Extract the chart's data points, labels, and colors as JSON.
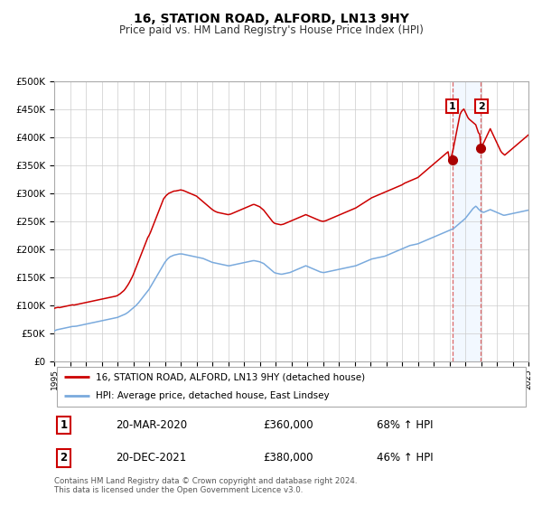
{
  "title": "16, STATION ROAD, ALFORD, LN13 9HY",
  "subtitle": "Price paid vs. HM Land Registry's House Price Index (HPI)",
  "legend_label1": "16, STATION ROAD, ALFORD, LN13 9HY (detached house)",
  "legend_label2": "HPI: Average price, detached house, East Lindsey",
  "annotation1_date": "20-MAR-2020",
  "annotation1_price": "£360,000",
  "annotation1_hpi": "68% ↑ HPI",
  "annotation1_year": 2020.22,
  "annotation1_value": 360000,
  "annotation2_date": "20-DEC-2021",
  "annotation2_price": "£380,000",
  "annotation2_hpi": "46% ↑ HPI",
  "annotation2_year": 2021.97,
  "annotation2_value": 380000,
  "line1_color": "#cc0000",
  "line2_color": "#7aaadd",
  "dot_color": "#aa0000",
  "vline_color": "#dd6666",
  "shade_color": "#ddeeff",
  "grid_color": "#cccccc",
  "footer": "Contains HM Land Registry data © Crown copyright and database right 2024.\nThis data is licensed under the Open Government Licence v3.0.",
  "ylim": [
    0,
    500000
  ],
  "xlim_start": 1995,
  "xlim_end": 2025,
  "hpi_data": [
    55000,
    56000,
    57000,
    57500,
    58000,
    58500,
    59000,
    59500,
    60000,
    60500,
    61000,
    61500,
    62000,
    62500,
    63000,
    63000,
    63200,
    63500,
    64000,
    64500,
    65000,
    65500,
    66000,
    66500,
    67000,
    67500,
    68000,
    68500,
    69000,
    69500,
    70000,
    70500,
    71000,
    71500,
    72000,
    72500,
    73000,
    73500,
    74000,
    74500,
    75000,
    75500,
    76000,
    76500,
    77000,
    77500,
    78000,
    78500,
    79000,
    80000,
    81000,
    82000,
    83000,
    84000,
    85000,
    86500,
    88000,
    90000,
    92000,
    94000,
    96000,
    98000,
    100000,
    102500,
    105000,
    108000,
    111000,
    114000,
    117000,
    120000,
    123000,
    126000,
    129000,
    133000,
    137000,
    141000,
    145000,
    149000,
    153000,
    157000,
    161000,
    165000,
    169000,
    173000,
    177000,
    180000,
    183000,
    185000,
    187000,
    188000,
    189000,
    190000,
    190500,
    191000,
    191500,
    192000,
    192000,
    192000,
    191500,
    191000,
    190500,
    190000,
    189500,
    189000,
    188500,
    188000,
    187500,
    187000,
    186500,
    186000,
    185500,
    185000,
    184500,
    184000,
    183000,
    182000,
    181000,
    180000,
    179000,
    178000,
    177000,
    176500,
    176000,
    175500,
    175000,
    174500,
    174000,
    173500,
    173000,
    172500,
    172000,
    171500,
    171000,
    171000,
    171500,
    172000,
    172500,
    173000,
    173500,
    174000,
    174500,
    175000,
    175500,
    176000,
    176500,
    177000,
    177500,
    178000,
    178500,
    179000,
    179500,
    180000,
    180000,
    179500,
    179000,
    178500,
    178000,
    177000,
    176000,
    175000,
    173000,
    171000,
    169000,
    167000,
    165000,
    163000,
    161000,
    159000,
    158000,
    157500,
    157000,
    156500,
    156000,
    156000,
    156500,
    157000,
    157500,
    158000,
    158500,
    159000,
    160000,
    161000,
    162000,
    163000,
    164000,
    165000,
    166000,
    167000,
    168000,
    169000,
    170000,
    171000,
    170000,
    169000,
    168000,
    167000,
    166000,
    165000,
    164000,
    163000,
    162000,
    161000,
    160000,
    159500,
    159000,
    159000,
    159500,
    160000,
    160500,
    161000,
    161500,
    162000,
    162500,
    163000,
    163500,
    164000,
    164500,
    165000,
    165500,
    166000,
    166500,
    167000,
    167500,
    168000,
    168500,
    169000,
    169500,
    170000,
    170500,
    171000,
    172000,
    173000,
    174000,
    175000,
    176000,
    177000,
    178000,
    179000,
    180000,
    181000,
    182000,
    183000,
    183500,
    184000,
    184500,
    185000,
    185500,
    186000,
    186500,
    187000,
    187500,
    188000,
    189000,
    190000,
    191000,
    192000,
    193000,
    194000,
    195000,
    196000,
    197000,
    198000,
    199000,
    200000,
    201000,
    202000,
    203000,
    204000,
    205000,
    206000,
    207000,
    207500,
    208000,
    208500,
    209000,
    209500,
    210000,
    211000,
    212000,
    213000,
    214000,
    215000,
    216000,
    217000,
    218000,
    219000,
    220000,
    221000,
    222000,
    223000,
    224000,
    225000,
    226000,
    227000,
    228000,
    229000,
    230000,
    231000,
    232000,
    233000,
    234000,
    235000,
    236000,
    237000,
    239000,
    241000,
    243000,
    245000,
    247000,
    249000,
    251000,
    253000,
    255000,
    258000,
    261000,
    264000,
    267000,
    270000,
    273000,
    275000,
    277000,
    275000,
    272000,
    270000,
    268000,
    267000,
    266000,
    267000,
    268000,
    269000,
    270000,
    271000,
    270000,
    269000,
    268000,
    267000,
    266000,
    265000,
    264000,
    263000,
    262000,
    261000,
    261000,
    261500,
    262000,
    262500,
    263000,
    263500,
    264000,
    264500,
    265000,
    265500,
    266000,
    266500,
    267000,
    267500,
    268000,
    268500,
    269000,
    269500,
    270000
  ],
  "red_data": [
    95000,
    96000,
    96500,
    97000,
    96500,
    97000,
    97500,
    98000,
    98500,
    99000,
    99500,
    100000,
    100500,
    101000,
    101500,
    101000,
    101500,
    102000,
    102500,
    103000,
    103500,
    104000,
    104500,
    105000,
    105500,
    106000,
    106500,
    107000,
    107500,
    108000,
    108500,
    109000,
    109500,
    110000,
    110500,
    111000,
    111500,
    112000,
    112500,
    113000,
    113500,
    114000,
    114500,
    115000,
    115500,
    116000,
    116500,
    117000,
    118000,
    119500,
    121000,
    123000,
    125000,
    127000,
    130000,
    133500,
    137000,
    141000,
    145500,
    150000,
    155000,
    161000,
    167000,
    173000,
    179000,
    185000,
    191000,
    197000,
    203000,
    209000,
    215000,
    221000,
    225000,
    230000,
    236000,
    242000,
    248000,
    254000,
    260000,
    266000,
    272000,
    278000,
    284000,
    290000,
    293000,
    296000,
    298000,
    300000,
    301000,
    302000,
    303000,
    304000,
    304000,
    304500,
    305000,
    305500,
    306000,
    305500,
    305000,
    304000,
    303000,
    302000,
    301000,
    300000,
    299000,
    298000,
    297000,
    296000,
    295000,
    293000,
    291000,
    289000,
    287000,
    285000,
    283000,
    281000,
    279000,
    277000,
    275000,
    273000,
    271000,
    269500,
    268000,
    267000,
    266000,
    265500,
    265000,
    264500,
    264000,
    263500,
    263000,
    262500,
    262000,
    262500,
    263000,
    264000,
    265000,
    266000,
    267000,
    268000,
    269000,
    270000,
    271000,
    272000,
    273000,
    274000,
    275000,
    276000,
    277000,
    278000,
    279000,
    280000,
    280000,
    279000,
    278000,
    277000,
    276000,
    274000,
    272000,
    270000,
    267000,
    264000,
    261000,
    258000,
    255000,
    252000,
    249000,
    247000,
    246000,
    245500,
    245000,
    244500,
    244000,
    244500,
    245000,
    246000,
    247000,
    248000,
    249000,
    250000,
    251000,
    252000,
    253000,
    254000,
    255000,
    256000,
    257000,
    258000,
    259000,
    260000,
    261000,
    262000,
    261000,
    260000,
    259000,
    258000,
    257000,
    256000,
    255000,
    254000,
    253000,
    252000,
    251000,
    250500,
    250000,
    250500,
    251000,
    252000,
    253000,
    254000,
    255000,
    256000,
    257000,
    258000,
    259000,
    260000,
    261000,
    262000,
    263000,
    264000,
    265000,
    266000,
    267000,
    268000,
    269000,
    270000,
    271000,
    272000,
    273000,
    274000,
    275500,
    277000,
    278500,
    280000,
    281500,
    283000,
    284500,
    286000,
    287500,
    289000,
    290500,
    292000,
    293000,
    294000,
    295000,
    296000,
    297000,
    298000,
    299000,
    300000,
    301000,
    302000,
    303000,
    304000,
    305000,
    306000,
    307000,
    308000,
    309000,
    310000,
    311000,
    312000,
    313000,
    314000,
    315000,
    316500,
    318000,
    319000,
    320000,
    321000,
    322000,
    323000,
    324000,
    325000,
    326000,
    327000,
    328000,
    330000,
    332000,
    334000,
    336000,
    338000,
    340000,
    342000,
    344000,
    346000,
    348000,
    350000,
    352000,
    354000,
    356000,
    358000,
    360000,
    362000,
    364000,
    366000,
    368000,
    370000,
    372000,
    374000,
    360000,
    362000,
    370000,
    380000,
    392000,
    404000,
    416000,
    428000,
    440000,
    445000,
    448000,
    450000,
    445000,
    440000,
    435000,
    432000,
    430000,
    428000,
    426000,
    424000,
    422000,
    415000,
    408000,
    405000,
    380000,
    385000,
    390000,
    395000,
    400000,
    405000,
    410000,
    415000,
    410000,
    405000,
    400000,
    395000,
    390000,
    385000,
    380000,
    375000,
    372000,
    370000,
    368000,
    370000,
    372000,
    374000,
    376000,
    378000,
    380000,
    382000,
    384000,
    386000,
    388000,
    390000,
    392000,
    394000,
    396000,
    398000,
    400000,
    402000,
    404000
  ]
}
